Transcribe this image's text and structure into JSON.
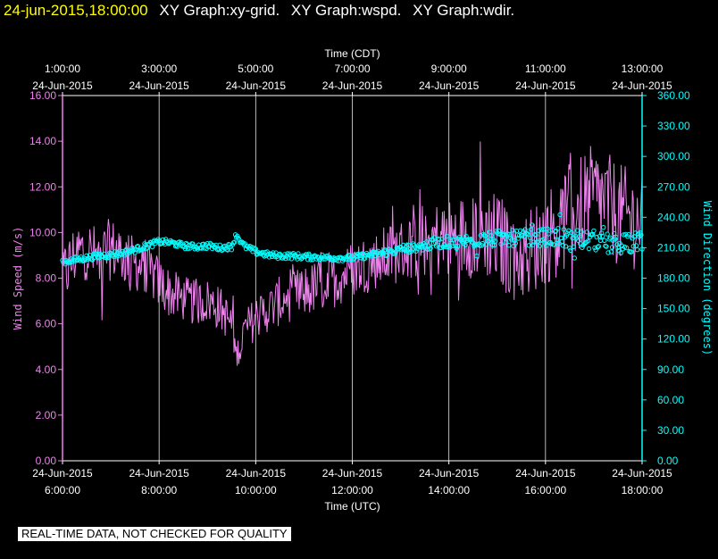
{
  "header": {
    "timestamp": "24-jun-2015,18:00:00",
    "graphs": [
      "XY Graph:xy-grid.",
      "XY Graph:wspd.",
      "XY Graph:wdir."
    ]
  },
  "disclaimer": "REAL-TIME DATA, NOT CHECKED FOR QUALITY",
  "colors": {
    "background": "#000000",
    "frame": "#ffffff",
    "grid": "#ffffff",
    "wspd": "#ee82ee",
    "wdir": "#00ffff",
    "text": "#ffffff",
    "header_timestamp": "#ffff00"
  },
  "chart_data": {
    "type": "line",
    "grid": true,
    "top_axis": {
      "title": "Time (CDT)",
      "ticks": [
        {
          "hour": 6,
          "time": "1:00:00",
          "date": "24-Jun-2015"
        },
        {
          "hour": 8,
          "time": "3:00:00",
          "date": "24-Jun-2015"
        },
        {
          "hour": 10,
          "time": "5:00:00",
          "date": "24-Jun-2015"
        },
        {
          "hour": 12,
          "time": "7:00:00",
          "date": "24-Jun-2015"
        },
        {
          "hour": 14,
          "time": "9:00:00",
          "date": "24-Jun-2015"
        },
        {
          "hour": 16,
          "time": "11:00:00",
          "date": "24-Jun-2015"
        },
        {
          "hour": 18,
          "time": "13:00:00",
          "date": "24-Jun-2015"
        }
      ]
    },
    "bottom_axis": {
      "title": "Time (UTC)",
      "xlim": [
        6,
        18
      ],
      "ticks": [
        {
          "hour": 6,
          "date": "24-Jun-2015",
          "time": "6:00:00"
        },
        {
          "hour": 8,
          "date": "24-Jun-2015",
          "time": "8:00:00"
        },
        {
          "hour": 10,
          "date": "24-Jun-2015",
          "time": "10:00:00"
        },
        {
          "hour": 12,
          "date": "24-Jun-2015",
          "time": "12:00:00"
        },
        {
          "hour": 14,
          "date": "24-Jun-2015",
          "time": "14:00:00"
        },
        {
          "hour": 16,
          "date": "24-Jun-2015",
          "time": "16:00:00"
        },
        {
          "hour": 18,
          "date": "24-Jun-2015",
          "time": "18:00:00"
        }
      ]
    },
    "left_axis": {
      "title": "Wind Speed (m/s)",
      "ylim": [
        0,
        16
      ],
      "ticks": [
        {
          "value": 0,
          "label": "0.00"
        },
        {
          "value": 2,
          "label": "2.00"
        },
        {
          "value": 4,
          "label": "4.00"
        },
        {
          "value": 6,
          "label": "6.00"
        },
        {
          "value": 8,
          "label": "8.00"
        },
        {
          "value": 10,
          "label": "10.00"
        },
        {
          "value": 12,
          "label": "12.00"
        },
        {
          "value": 14,
          "label": "14.00"
        },
        {
          "value": 16,
          "label": "16.00"
        }
      ]
    },
    "right_axis": {
      "title": "Wind Direction (degrees)",
      "ylim": [
        0,
        360
      ],
      "ticks": [
        {
          "value": 0,
          "label": "0.00"
        },
        {
          "value": 30,
          "label": "30.00"
        },
        {
          "value": 60,
          "label": "60.00"
        },
        {
          "value": 90,
          "label": "90.00"
        },
        {
          "value": 120,
          "label": "120.00"
        },
        {
          "value": 150,
          "label": "150.00"
        },
        {
          "value": 180,
          "label": "180.00"
        },
        {
          "value": 210,
          "label": "210.00"
        },
        {
          "value": 240,
          "label": "240.00"
        },
        {
          "value": 270,
          "label": "270.00"
        },
        {
          "value": 300,
          "label": "300.00"
        },
        {
          "value": 330,
          "label": "330.00"
        },
        {
          "value": 360,
          "label": "360.00"
        }
      ]
    },
    "series": [
      {
        "key": "wspd",
        "type": "line",
        "axis": "left",
        "x": [
          6.0,
          6.25,
          6.5,
          6.75,
          7.0,
          7.25,
          7.5,
          7.75,
          8.0,
          8.25,
          8.5,
          8.75,
          9.0,
          9.25,
          9.5,
          9.6,
          9.75,
          10.0,
          10.25,
          10.5,
          10.75,
          11.0,
          11.25,
          11.5,
          11.75,
          12.0,
          12.25,
          12.5,
          12.75,
          13.0,
          13.25,
          13.5,
          13.75,
          14.0,
          14.25,
          14.5,
          14.75,
          15.0,
          15.25,
          15.5,
          15.75,
          16.0,
          16.25,
          16.5,
          16.75,
          17.0,
          17.25,
          17.5,
          17.75,
          18.0
        ],
        "y": [
          8.0,
          9.0,
          9.3,
          8.8,
          9.3,
          9.0,
          8.6,
          8.4,
          7.8,
          7.3,
          7.1,
          6.9,
          7.0,
          6.7,
          6.0,
          4.6,
          5.6,
          6.3,
          6.6,
          7.0,
          7.2,
          7.4,
          7.6,
          7.9,
          8.1,
          8.4,
          8.6,
          8.8,
          9.0,
          9.2,
          9.4,
          9.6,
          9.7,
          9.7,
          9.8,
          9.9,
          10.0,
          9.7,
          9.2,
          8.9,
          9.3,
          9.8,
          10.2,
          10.8,
          11.2,
          11.5,
          11.3,
          10.8,
          10.6,
          10.4
        ],
        "noise": [
          1.4,
          1.5,
          1.4,
          1.4,
          1.4,
          1.3,
          1.2,
          1.1,
          1.2,
          1.1,
          1.0,
          1.0,
          1.0,
          1.0,
          0.9,
          0.6,
          0.9,
          1.0,
          1.0,
          1.1,
          1.1,
          1.2,
          1.2,
          1.3,
          1.3,
          1.3,
          1.3,
          1.3,
          1.4,
          1.4,
          1.5,
          1.6,
          1.7,
          1.8,
          1.9,
          1.9,
          2.0,
          2.1,
          2.1,
          2.0,
          2.0,
          2.1,
          2.2,
          2.3,
          2.3,
          2.4,
          2.3,
          2.3,
          2.2,
          2.1
        ]
      },
      {
        "key": "wdir",
        "type": "scatter",
        "axis": "right",
        "x": [
          6.0,
          6.25,
          6.5,
          6.75,
          7.0,
          7.25,
          7.5,
          7.75,
          8.0,
          8.25,
          8.5,
          8.75,
          9.0,
          9.25,
          9.5,
          9.6,
          9.75,
          10.0,
          10.25,
          10.5,
          10.75,
          11.0,
          11.25,
          11.5,
          11.75,
          12.0,
          12.25,
          12.5,
          12.75,
          13.0,
          13.25,
          13.5,
          13.75,
          14.0,
          14.25,
          14.5,
          14.75,
          15.0,
          15.25,
          15.5,
          15.75,
          16.0,
          16.25,
          16.5,
          16.75,
          17.0,
          17.25,
          17.5,
          17.75,
          18.0
        ],
        "y": [
          196,
          198,
          200,
          202,
          203,
          205,
          208,
          212,
          216,
          215,
          212,
          211,
          212,
          210,
          211,
          223,
          212,
          206,
          203,
          202,
          202,
          201,
          201,
          200,
          200,
          200,
          202,
          204,
          206,
          208,
          210,
          212,
          214,
          216,
          216,
          217,
          218,
          219,
          219,
          220,
          220,
          220,
          220,
          219,
          218,
          217,
          214,
          213,
          214,
          217
        ],
        "noise": [
          3,
          3,
          3,
          3,
          3,
          3,
          3,
          3,
          3,
          3,
          3,
          3,
          3,
          3,
          3,
          3,
          3,
          3,
          3,
          3,
          3,
          3,
          3,
          3,
          3,
          3,
          3,
          3,
          4,
          4,
          4,
          5,
          5,
          6,
          6,
          7,
          7,
          8,
          8,
          8,
          8,
          9,
          9,
          10,
          10,
          10,
          10,
          10,
          10,
          10
        ]
      }
    ]
  }
}
